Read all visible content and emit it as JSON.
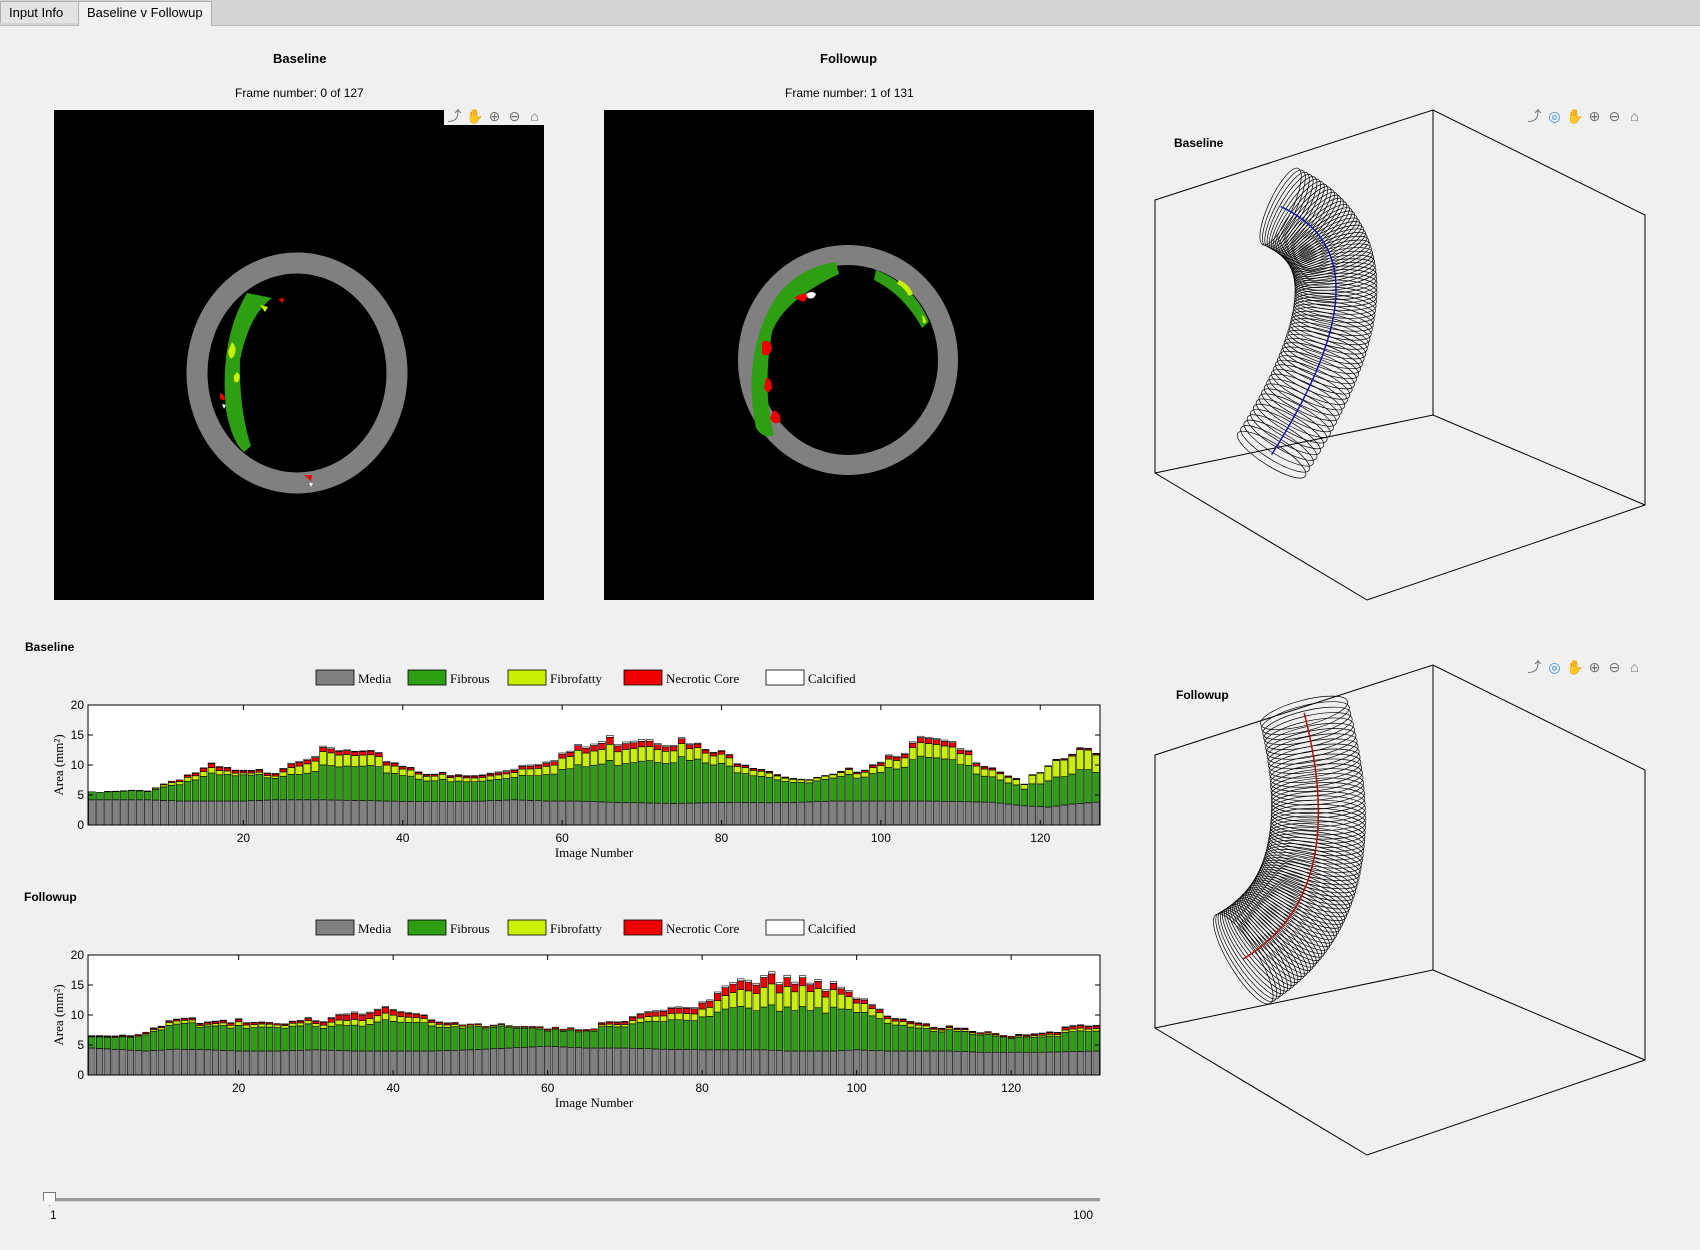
{
  "tabs": [
    {
      "label": "Input Info",
      "active": false
    },
    {
      "label": "Baseline v Followup",
      "active": true
    }
  ],
  "baseline_panel": {
    "title": "Baseline",
    "frame_text": "Frame number: 0 of 127"
  },
  "followup_panel": {
    "title": "Followup",
    "frame_text": "Frame number: 1 of 131"
  },
  "toolbar_icons": [
    "export-icon",
    "pan-hand-icon",
    "zoom-in-icon",
    "zoom-out-icon",
    "home-icon"
  ],
  "toolbar3d_icons": [
    "export-icon",
    "rotate-3d-icon",
    "pan-hand-icon",
    "zoom-in-icon",
    "zoom-out-icon",
    "home-icon"
  ],
  "vessel3d": [
    {
      "title": "Baseline",
      "centerline_color": "#1a1aa8"
    },
    {
      "title": "Followup",
      "centerline_color": "#b01010"
    }
  ],
  "legend": [
    {
      "label": "Media",
      "color": "#808080"
    },
    {
      "label": "Fibrous",
      "color": "#2e9e12"
    },
    {
      "label": "Fibrofatty",
      "color": "#c8f000"
    },
    {
      "label": "Necrotic Core",
      "color": "#ee0000"
    },
    {
      "label": "Calcified",
      "color": "#ffffff"
    }
  ],
  "chart_data": [
    {
      "title": "Baseline",
      "type": "bar",
      "stacked": true,
      "xlabel": "Image Number",
      "ylabel": "Area (mm²)",
      "ylim": [
        0,
        20
      ],
      "xticks": [
        20,
        40,
        60,
        80,
        100,
        120
      ],
      "yticks": [
        0,
        5,
        10,
        15,
        20
      ],
      "x_range": [
        1,
        127
      ],
      "series_names": [
        "Media",
        "Fibrous",
        "Fibrofatty",
        "Necrotic Core",
        "Calcified"
      ],
      "keypoints": {
        "x": [
          1,
          8,
          12,
          16,
          20,
          24,
          27,
          30,
          34,
          38,
          42,
          46,
          50,
          54,
          58,
          62,
          66,
          70,
          74,
          78,
          82,
          86,
          90,
          94,
          98,
          102,
          106,
          110,
          114,
          118,
          121,
          124,
          127
        ],
        "Media": [
          4.2,
          4.2,
          4.0,
          4.0,
          4.0,
          4.2,
          4.2,
          4.2,
          4.1,
          4.0,
          3.9,
          3.9,
          4.0,
          4.2,
          4.0,
          4.0,
          3.8,
          3.7,
          3.6,
          3.7,
          3.8,
          3.7,
          3.8,
          4.0,
          4.0,
          4.0,
          4.0,
          3.9,
          3.8,
          3.2,
          3.0,
          3.5,
          3.8
        ],
        "Fibrous": [
          1.2,
          1.5,
          3.0,
          4.2,
          4.0,
          4.0,
          4.8,
          5.2,
          5.5,
          5.0,
          4.0,
          3.2,
          3.2,
          4.0,
          4.8,
          5.5,
          6.5,
          7.5,
          7.5,
          6.5,
          5.5,
          4.5,
          3.0,
          3.5,
          4.5,
          6.0,
          7.0,
          6.0,
          4.5,
          3.0,
          4.0,
          5.0,
          5.5
        ],
        "Fibrofatty": [
          0.0,
          0.1,
          0.6,
          0.8,
          0.3,
          0.4,
          1.6,
          2.0,
          1.8,
          1.4,
          0.9,
          0.7,
          0.6,
          0.9,
          1.5,
          2.2,
          2.5,
          2.6,
          2.2,
          1.6,
          1.2,
          0.8,
          0.4,
          0.5,
          0.9,
          1.6,
          2.2,
          1.8,
          1.2,
          0.8,
          2.2,
          3.0,
          3.2
        ],
        "Necrotic Core": [
          0.0,
          0.0,
          0.3,
          0.6,
          0.3,
          0.4,
          0.7,
          0.6,
          0.6,
          0.5,
          0.3,
          0.2,
          0.3,
          0.4,
          0.6,
          0.7,
          1.1,
          1.0,
          0.8,
          0.5,
          0.4,
          0.2,
          0.1,
          0.1,
          0.3,
          0.6,
          0.8,
          0.6,
          0.3,
          0.1,
          0.1,
          0.2,
          0.2
        ],
        "Calcified": [
          0.0,
          0.0,
          0.0,
          0.1,
          0.1,
          0.1,
          0.2,
          0.2,
          0.1,
          0.1,
          0.1,
          0.1,
          0.1,
          0.2,
          0.2,
          0.2,
          0.3,
          0.3,
          0.2,
          0.1,
          0.1,
          0.1,
          0.0,
          0.0,
          0.1,
          0.2,
          0.2,
          0.2,
          0.1,
          0.0,
          0.0,
          0.1,
          0.1
        ]
      }
    },
    {
      "title": "Followup",
      "type": "bar",
      "stacked": true,
      "xlabel": "Image Number",
      "ylabel": "Area (mm²)",
      "ylim": [
        0,
        20
      ],
      "xticks": [
        20,
        40,
        60,
        80,
        100,
        120
      ],
      "yticks": [
        0,
        5,
        10,
        15,
        20
      ],
      "x_range": [
        1,
        131
      ],
      "series_names": [
        "Media",
        "Fibrous",
        "Fibrofatty",
        "Necrotic Core",
        "Calcified"
      ],
      "keypoints": {
        "x": [
          1,
          8,
          12,
          16,
          20,
          25,
          30,
          35,
          40,
          45,
          50,
          55,
          60,
          65,
          70,
          75,
          80,
          85,
          88,
          91,
          94,
          97,
          100,
          104,
          108,
          112,
          116,
          120,
          124,
          128,
          131
        ],
        "Media": [
          4.5,
          4.0,
          4.3,
          4.2,
          4.0,
          4.0,
          4.2,
          4.0,
          4.0,
          4.0,
          4.2,
          4.5,
          4.8,
          4.5,
          4.5,
          4.3,
          4.2,
          4.2,
          4.2,
          4.0,
          4.0,
          4.0,
          4.2,
          4.0,
          4.0,
          4.0,
          3.8,
          3.8,
          3.8,
          3.9,
          4.0
        ],
        "Fibrous": [
          2.0,
          2.5,
          4.0,
          4.0,
          4.3,
          3.5,
          4.0,
          4.5,
          4.8,
          4.5,
          4.0,
          3.2,
          2.8,
          3.0,
          3.5,
          4.8,
          5.5,
          6.5,
          6.5,
          7.5,
          7.5,
          7.0,
          6.0,
          5.0,
          4.0,
          3.3,
          2.8,
          2.5,
          2.8,
          3.0,
          3.2
        ],
        "Fibrofatty": [
          0.1,
          0.2,
          0.5,
          0.3,
          0.6,
          0.4,
          0.5,
          1.0,
          1.0,
          0.6,
          0.3,
          0.2,
          0.2,
          0.2,
          0.4,
          1.0,
          1.3,
          2.5,
          3.0,
          3.5,
          3.5,
          2.8,
          1.5,
          0.8,
          0.5,
          0.3,
          0.2,
          0.2,
          0.3,
          0.4,
          0.4
        ],
        "Necrotic Core": [
          0.1,
          0.2,
          0.2,
          0.3,
          0.4,
          0.2,
          0.4,
          1.1,
          0.8,
          0.4,
          0.2,
          0.1,
          0.2,
          0.2,
          0.4,
          0.8,
          1.0,
          1.3,
          1.5,
          1.5,
          1.3,
          1.0,
          0.6,
          0.4,
          0.3,
          0.2,
          0.2,
          0.2,
          0.3,
          0.4,
          0.4
        ],
        "Calcified": [
          0.0,
          0.0,
          0.1,
          0.1,
          0.1,
          0.0,
          0.1,
          0.2,
          0.1,
          0.1,
          0.0,
          0.0,
          0.0,
          0.0,
          0.1,
          0.2,
          0.2,
          0.3,
          0.3,
          0.4,
          0.3,
          0.3,
          0.2,
          0.1,
          0.1,
          0.1,
          0.0,
          0.0,
          0.1,
          0.1,
          0.1
        ]
      }
    }
  ],
  "slider": {
    "min_label": "1",
    "max_label": "100",
    "value": 1
  }
}
